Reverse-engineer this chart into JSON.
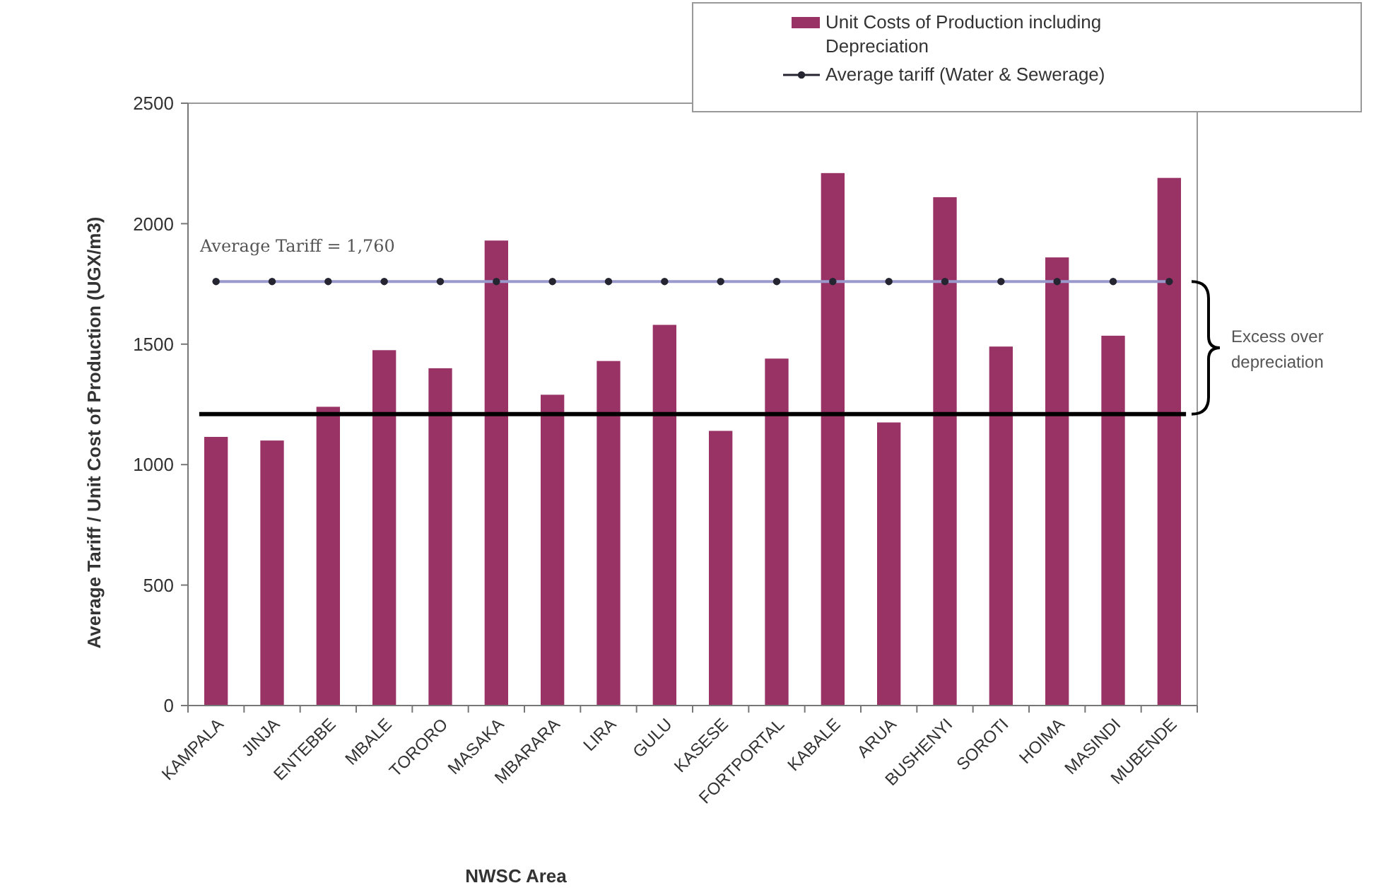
{
  "chart_data": {
    "type": "bar",
    "xlabel": "NWSC Area",
    "ylabel": "Average Tariff / Unit Cost of Production (UGX/m3)",
    "categories": [
      "KAMPALA",
      "JINJA",
      "ENTEBBE",
      "MBALE",
      "TORORO",
      "MASAKA",
      "MBARARA",
      "LIRA",
      "GULU",
      "KASESE",
      "FORTPORTAL",
      "KABALE",
      "ARUA",
      "BUSHENYI",
      "SOROTI",
      "HOIMA",
      "MASINDI",
      "MUBENDE"
    ],
    "series": [
      {
        "name": "Unit Costs of Production including Depreciation",
        "color": "#993366",
        "values": [
          1115,
          1100,
          1240,
          1475,
          1400,
          1930,
          1290,
          1430,
          1580,
          1140,
          1440,
          2210,
          1175,
          2110,
          1490,
          1860,
          1535,
          2190
        ]
      },
      {
        "type": "line",
        "name": "Average tariff (Water & Sewerage)",
        "color": "#9999cc",
        "marker": "circle",
        "values": [
          1760,
          1760,
          1760,
          1760,
          1760,
          1760,
          1760,
          1760,
          1760,
          1760,
          1760,
          1760,
          1760,
          1760,
          1760,
          1760,
          1760,
          1760
        ]
      }
    ],
    "ylim": [
      0,
      2500
    ],
    "yticks": [
      0,
      500,
      1000,
      1500,
      2000,
      2500
    ],
    "grid": false,
    "legend": "top right",
    "ref_lines": [
      {
        "axis": "y",
        "value": 1210,
        "color": "#000000"
      }
    ],
    "annotations": [
      {
        "text": "Average Tariff = 1,760",
        "x": "KAMPALA",
        "y": 1760
      },
      "Excess over depreciation"
    ]
  }
}
